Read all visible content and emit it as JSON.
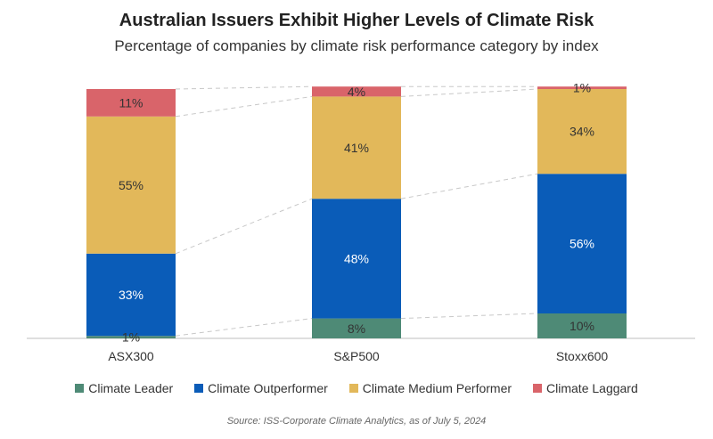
{
  "chart_data": {
    "type": "bar",
    "stacked": true,
    "title": "Australian Issuers Exhibit Higher Levels of Climate Risk",
    "subtitle": "Percentage of companies by climate risk performance category by index",
    "categories": [
      "ASX300",
      "S&P500",
      "Stoxx600"
    ],
    "series": [
      {
        "name": "Climate Leader",
        "color": "#4e8a76",
        "values": [
          1,
          8,
          10
        ]
      },
      {
        "name": "Climate Outperformer",
        "color": "#0a5cb8",
        "values": [
          33,
          48,
          56
        ]
      },
      {
        "name": "Climate Medium Performer",
        "color": "#e2b85a",
        "values": [
          55,
          41,
          34
        ]
      },
      {
        "name": "Climate Laggard",
        "color": "#d9646a",
        "values": [
          11,
          4,
          1
        ]
      }
    ],
    "value_labels": [
      [
        "1%",
        "8%",
        "10%"
      ],
      [
        "33%",
        "48%",
        "56%"
      ],
      [
        "55%",
        "41%",
        "34%"
      ],
      [
        "11%",
        "4%",
        "1%"
      ]
    ],
    "ylim": [
      0,
      100
    ],
    "xlabel": "",
    "ylabel": "",
    "legend_position": "bottom",
    "grid": false,
    "source": "Source: ISS-Corporate Climate Analytics,  as of July 5, 2024"
  }
}
